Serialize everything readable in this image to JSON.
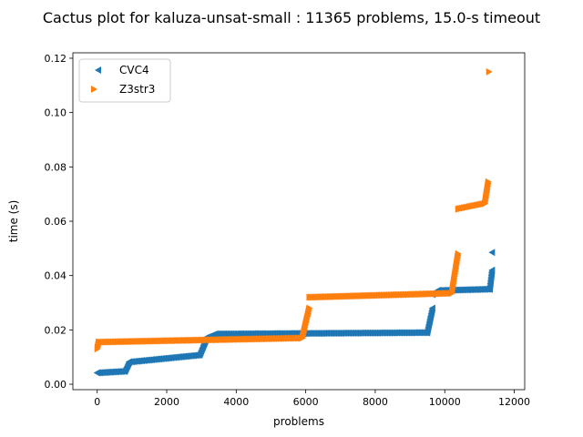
{
  "chart_data": {
    "type": "scatter",
    "title": "Cactus plot for kaluza-unsat-small : 11365 problems, 15.0-s timeout",
    "xlabel": "problems",
    "ylabel": "time (s)",
    "xlim": [
      -700,
      12300
    ],
    "ylim": [
      -0.002,
      0.122
    ],
    "xticks": [
      0,
      2000,
      4000,
      6000,
      8000,
      10000,
      12000
    ],
    "xtick_labels": [
      "0",
      "2000",
      "4000",
      "6000",
      "8000",
      "10000",
      "12000"
    ],
    "yticks": [
      0.0,
      0.02,
      0.04,
      0.06,
      0.08,
      0.1,
      0.12
    ],
    "ytick_labels": [
      "0.00",
      "0.02",
      "0.04",
      "0.06",
      "0.08",
      "0.10",
      "0.12"
    ],
    "legend_position": "top-left",
    "series": [
      {
        "name": "CVC4",
        "color": "#1f77b4",
        "marker": "triangle-left",
        "segments": [
          {
            "x_start": 0,
            "x_end": 800,
            "y_start": 0.0042,
            "y_end": 0.0048
          },
          {
            "x_start": 800,
            "x_end": 920,
            "y_start": 0.0048,
            "y_end": 0.008
          },
          {
            "x_start": 920,
            "x_end": 2950,
            "y_start": 0.0082,
            "y_end": 0.0108
          },
          {
            "x_start": 2950,
            "x_end": 3120,
            "y_start": 0.0108,
            "y_end": 0.016
          },
          {
            "x_start": 3120,
            "x_end": 3400,
            "y_start": 0.017,
            "y_end": 0.0185
          },
          {
            "x_start": 3400,
            "x_end": 9500,
            "y_start": 0.0185,
            "y_end": 0.019
          },
          {
            "x_start": 9500,
            "x_end": 9650,
            "y_start": 0.019,
            "y_end": 0.028
          },
          {
            "x_start": 9650,
            "x_end": 9800,
            "y_start": 0.033,
            "y_end": 0.0345
          },
          {
            "x_start": 9800,
            "x_end": 11300,
            "y_start": 0.0345,
            "y_end": 0.035
          },
          {
            "x_start": 11300,
            "x_end": 11365,
            "y_start": 0.035,
            "y_end": 0.042
          }
        ],
        "outliers": [
          {
            "x": 11365,
            "y": 0.0485
          }
        ]
      },
      {
        "name": "Z3str3",
        "color": "#ff7f0e",
        "marker": "triangle-right",
        "segments": [
          {
            "x_start": 0,
            "x_end": 40,
            "y_start": 0.013,
            "y_end": 0.0155
          },
          {
            "x_start": 40,
            "x_end": 5900,
            "y_start": 0.0155,
            "y_end": 0.017
          },
          {
            "x_start": 5900,
            "x_end": 6100,
            "y_start": 0.017,
            "y_end": 0.028
          },
          {
            "x_start": 6100,
            "x_end": 10200,
            "y_start": 0.032,
            "y_end": 0.0335
          },
          {
            "x_start": 10200,
            "x_end": 10380,
            "y_start": 0.0335,
            "y_end": 0.048
          },
          {
            "x_start": 10380,
            "x_end": 11150,
            "y_start": 0.0645,
            "y_end": 0.0665
          },
          {
            "x_start": 11150,
            "x_end": 11250,
            "y_start": 0.0665,
            "y_end": 0.0745
          }
        ],
        "outliers": [
          {
            "x": 11270,
            "y": 0.115
          }
        ]
      }
    ]
  }
}
